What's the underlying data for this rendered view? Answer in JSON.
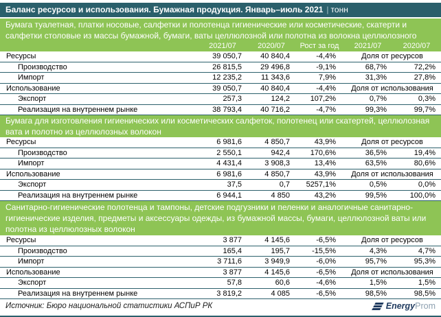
{
  "header": {
    "title": "Баланс ресурсов и использования. Бумажная продукция. Январь–июль 2021",
    "divider": "|",
    "unit": "тонн"
  },
  "colors": {
    "teal": "#2A5F6B",
    "green": "#8EC455",
    "logo_navy": "#1F3A5F",
    "logo_gray": "#8DA0B0",
    "text": "#000000",
    "white": "#FFFFFF"
  },
  "chart_data": {
    "type": "table",
    "title": "Баланс ресурсов и использования. Бумажная продукция. Январь–июль 2021",
    "unit": "тонн",
    "columns": [
      "2021/07",
      "2020/07",
      "Рост за год",
      "2021/07",
      "2020/07"
    ],
    "sections": [
      {
        "header": "Бумага туалетная, платки носовые, салфетки и полотенца гигиенические или косметические, скатерти и салфетки столовые из массы бумажной, бумаги, ваты целлюлозной или полотна из волокна целлюлозного",
        "header_lines": 2,
        "show_columns": true,
        "rows": [
          {
            "label": "Ресурсы",
            "indent": 0,
            "v2021": "39 050,7",
            "v2020": "40 840,4",
            "growth": "-4,4%",
            "merged": "Доля от ресурсов"
          },
          {
            "label": "Производство",
            "indent": 1,
            "v2021": "26 815,5",
            "v2020": "29 496,8",
            "growth": "-9,1%",
            "share2021": "68,7%",
            "share2020": "72,2%"
          },
          {
            "label": "Импорт",
            "indent": 1,
            "v2021": "12 235,2",
            "v2020": "11 343,6",
            "growth": "7,9%",
            "share2021": "31,3%",
            "share2020": "27,8%"
          },
          {
            "label": "Использование",
            "indent": 0,
            "v2021": "39 050,7",
            "v2020": "40 840,4",
            "growth": "-4,4%",
            "merged": "Доля от использования"
          },
          {
            "label": "Экспорт",
            "indent": 1,
            "v2021": "257,3",
            "v2020": "124,2",
            "growth": "107,2%",
            "share2021": "0,7%",
            "share2020": "0,3%"
          },
          {
            "label": "Реализация на внутреннем рынке",
            "indent": 1,
            "v2021": "38 793,4",
            "v2020": "40 716,2",
            "growth": "-4,7%",
            "share2021": "99,3%",
            "share2020": "99,7%"
          }
        ]
      },
      {
        "header": "Бумага для изготовления гигиенических или косметических салфеток, полотенец или скатертей, целлюлозная вата и полотно из целлюлозных волокон",
        "header_lines": 2,
        "show_columns": false,
        "rows": [
          {
            "label": "Ресурсы",
            "indent": 0,
            "v2021": "6 981,6",
            "v2020": "4 850,7",
            "growth": "43,9%",
            "merged": "Доля от ресурсов"
          },
          {
            "label": "Производство",
            "indent": 1,
            "v2021": "2 550,1",
            "v2020": "942,4",
            "growth": "170,6%",
            "share2021": "36,5%",
            "share2020": "19,4%"
          },
          {
            "label": "Импорт",
            "indent": 1,
            "v2021": "4 431,4",
            "v2020": "3 908,3",
            "growth": "13,4%",
            "share2021": "63,5%",
            "share2020": "80,6%"
          },
          {
            "label": "Использование",
            "indent": 0,
            "v2021": "6 981,6",
            "v2020": "4 850,7",
            "growth": "43,9%",
            "merged": "Доля от использования"
          },
          {
            "label": "Экспорт",
            "indent": 1,
            "v2021": "37,5",
            "v2020": "0,7",
            "growth": "5257,1%",
            "share2021": "0,5%",
            "share2020": "0,0%"
          },
          {
            "label": "Реализация на внутреннем рынке",
            "indent": 1,
            "v2021": "6 944,1",
            "v2020": "4 850",
            "growth": "43,2%",
            "share2021": "99,5%",
            "share2020": "100,0%"
          }
        ]
      },
      {
        "header": "Санитарно-гигиенические полотенца и тампоны, детские подгузники и пеленки и аналогичные санитарно-гигиенические изделия, предметы и аксессуары одежды, из бумажной массы, бумаги, целлюлозной ваты или полотна из целлюлозных волокон",
        "header_lines": 3,
        "show_columns": false,
        "rows": [
          {
            "label": "Ресурсы",
            "indent": 0,
            "v2021": "3 877",
            "v2020": "4 145,6",
            "growth": "-6,5%",
            "merged": "Доля от ресурсов"
          },
          {
            "label": "Производство",
            "indent": 1,
            "v2021": "165,4",
            "v2020": "195,7",
            "growth": "-15,5%",
            "share2021": "4,3%",
            "share2020": "4,7%"
          },
          {
            "label": "Импорт",
            "indent": 1,
            "v2021": "3 711,6",
            "v2020": "3 949,9",
            "growth": "-6,0%",
            "share2021": "95,7%",
            "share2020": "95,3%"
          },
          {
            "label": "Использование",
            "indent": 0,
            "v2021": "3 877",
            "v2020": "4 145,6",
            "growth": "-6,5%",
            "merged": "Доля от использования"
          },
          {
            "label": "Экспорт",
            "indent": 1,
            "v2021": "57,8",
            "v2020": "60,6",
            "growth": "-4,6%",
            "share2021": "1,5%",
            "share2020": "1,5%"
          },
          {
            "label": "Реализация на внутреннем рынке",
            "indent": 1,
            "v2021": "3 819,2",
            "v2020": "4 085",
            "growth": "-6,5%",
            "share2021": "98,5%",
            "share2020": "98,5%"
          }
        ]
      }
    ]
  },
  "footer": {
    "source": "Источник: Бюро национальной статистики АСПиР РК",
    "logo_bold": "Energy",
    "logo_light": "Prom"
  }
}
